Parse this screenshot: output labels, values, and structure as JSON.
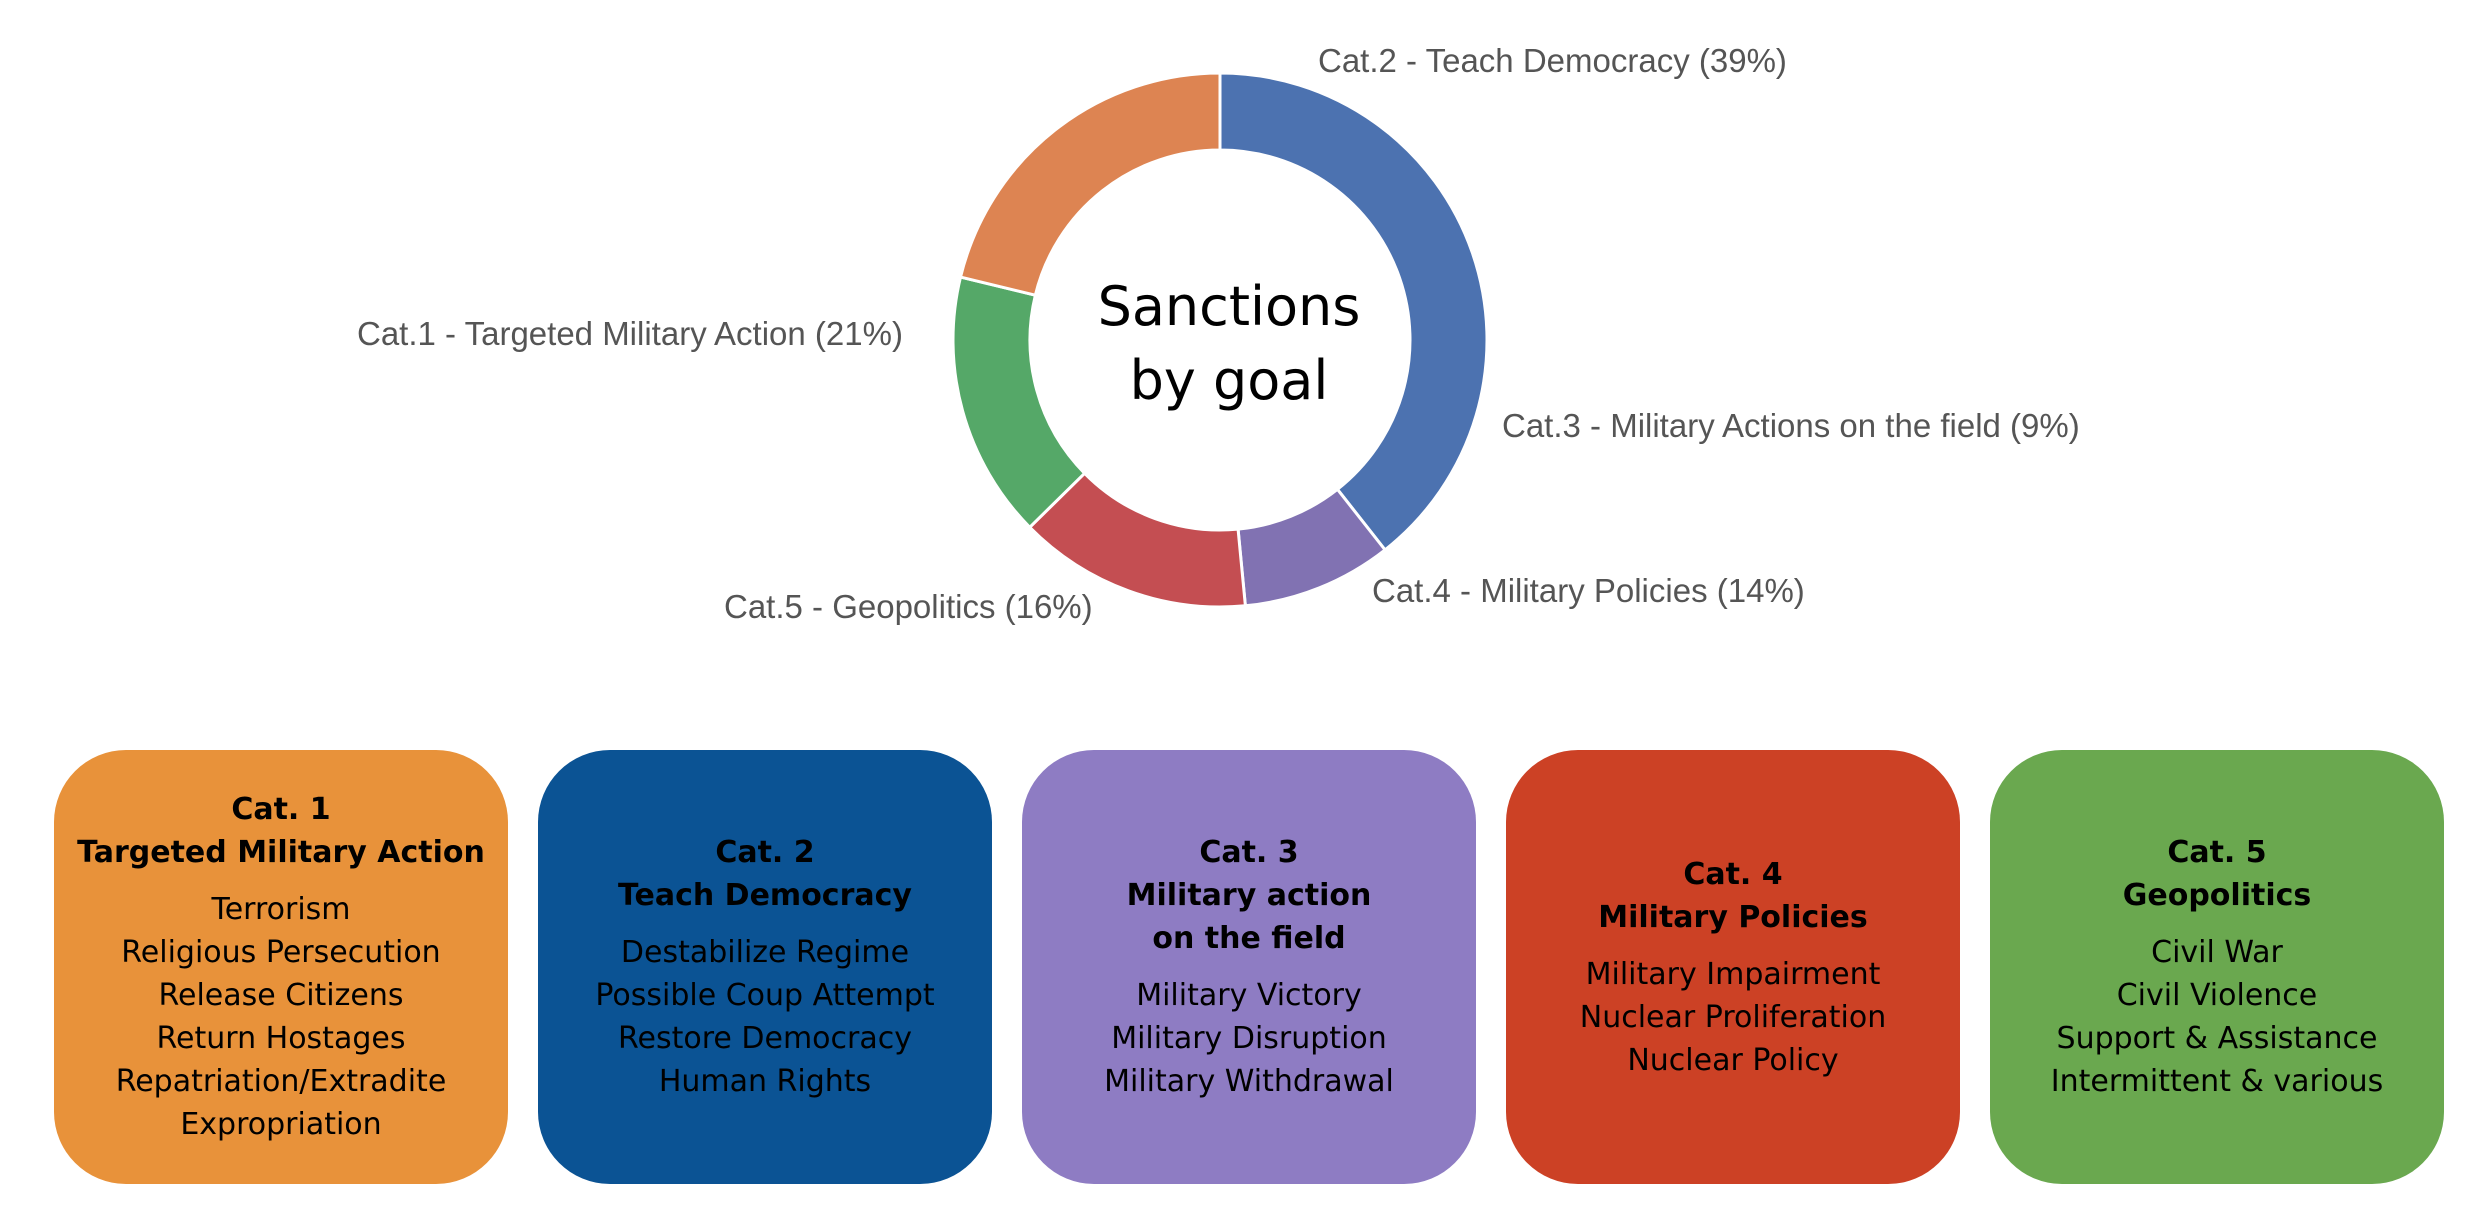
{
  "chart_data": {
    "type": "pie",
    "title": "",
    "center_text": [
      "Sanctions",
      "by goal"
    ],
    "slices": [
      {
        "label": "Cat.2 - Teach Democracy (39%)",
        "value": 39,
        "color": "#4C72B0"
      },
      {
        "label": "Cat.3 - Military Actions on the field (9%)",
        "value": 9,
        "color": "#8172B2"
      },
      {
        "label": "Cat.4 - Military Policies (14%)",
        "value": 14,
        "color": "#C44E52"
      },
      {
        "label": "Cat.5 - Geopolitics (16%)",
        "value": 16,
        "color": "#55A868"
      },
      {
        "label": "Cat.1 - Targeted Military Action (21%)",
        "value": 21,
        "color": "#DD8452"
      }
    ],
    "donut": true,
    "start_angle_deg": 90,
    "direction": "clockwise"
  },
  "cards": [
    {
      "title": [
        "Cat. 1",
        "Targeted Military Action"
      ],
      "items": [
        "Terrorism",
        "Religious Persecution",
        "Release Citizens",
        "Return Hostages",
        "Repatriation/Extradite",
        "Expropriation"
      ],
      "color": "#E8923A"
    },
    {
      "title": [
        "Cat. 2",
        "Teach Democracy"
      ],
      "items": [
        "Destabilize Regime",
        "Possible Coup Attempt",
        "Restore Democracy",
        "Human Rights"
      ],
      "color": "#0B5394"
    },
    {
      "title": [
        "Cat. 3",
        "Military action",
        "on the field"
      ],
      "items": [
        "Military Victory",
        "Military Disruption",
        "Military Withdrawal"
      ],
      "color": "#8E7CC3"
    },
    {
      "title": [
        "Cat. 4",
        "Military Policies"
      ],
      "items": [
        "Military Impairment",
        "Nuclear Proliferation",
        "Nuclear Policy"
      ],
      "color": "#CC4125"
    },
    {
      "title": [
        "Cat. 5",
        "Geopolitics"
      ],
      "items": [
        "Civil War",
        "Civil Violence",
        "Support & Assistance",
        "Intermittent & various"
      ],
      "color": "#6AA84F"
    }
  ]
}
